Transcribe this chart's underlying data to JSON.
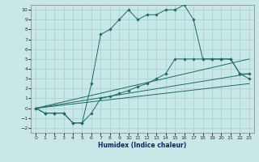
{
  "title": "",
  "xlabel": "Humidex (Indice chaleur)",
  "background_color": "#c8e8e8",
  "grid_color": "#a8cece",
  "line_color": "#1a6b6b",
  "xlim": [
    -0.5,
    23.5
  ],
  "ylim": [
    -2.5,
    10.5
  ],
  "xticks": [
    0,
    1,
    2,
    3,
    4,
    5,
    6,
    7,
    8,
    9,
    10,
    11,
    12,
    13,
    14,
    15,
    16,
    17,
    18,
    19,
    20,
    21,
    22,
    23
  ],
  "yticks": [
    -2,
    -1,
    0,
    1,
    2,
    3,
    4,
    5,
    6,
    7,
    8,
    9,
    10
  ],
  "line1_x": [
    0,
    1,
    2,
    3,
    4,
    5,
    6,
    7,
    8,
    9,
    10,
    11,
    12,
    13,
    14,
    15,
    16,
    17,
    18,
    19,
    20,
    21,
    22,
    23
  ],
  "line1_y": [
    0,
    -0.5,
    -0.5,
    -0.5,
    -1.5,
    -1.5,
    2.5,
    7.5,
    8,
    9,
    10,
    9,
    9.5,
    9.5,
    10,
    10,
    10.5,
    9,
    5,
    5,
    5,
    5,
    3.5,
    3.5
  ],
  "line2_x": [
    0,
    1,
    2,
    3,
    4,
    5,
    6,
    7,
    8,
    9,
    10,
    11,
    12,
    13,
    14,
    15,
    16,
    17,
    18,
    19,
    20,
    21,
    22,
    23
  ],
  "line2_y": [
    0,
    -0.5,
    -0.5,
    -0.5,
    -1.5,
    -1.5,
    -0.5,
    1.0,
    1.2,
    1.5,
    1.8,
    2.2,
    2.5,
    3.0,
    3.5,
    5.0,
    5.0,
    5.0,
    5.0,
    5.0,
    5.0,
    5.0,
    3.5,
    3.0
  ],
  "line3_x": [
    0,
    23
  ],
  "line3_y": [
    0,
    2.5
  ],
  "line4_x": [
    0,
    23
  ],
  "line4_y": [
    0,
    3.5
  ],
  "line5_x": [
    0,
    23
  ],
  "line5_y": [
    0,
    5.0
  ]
}
